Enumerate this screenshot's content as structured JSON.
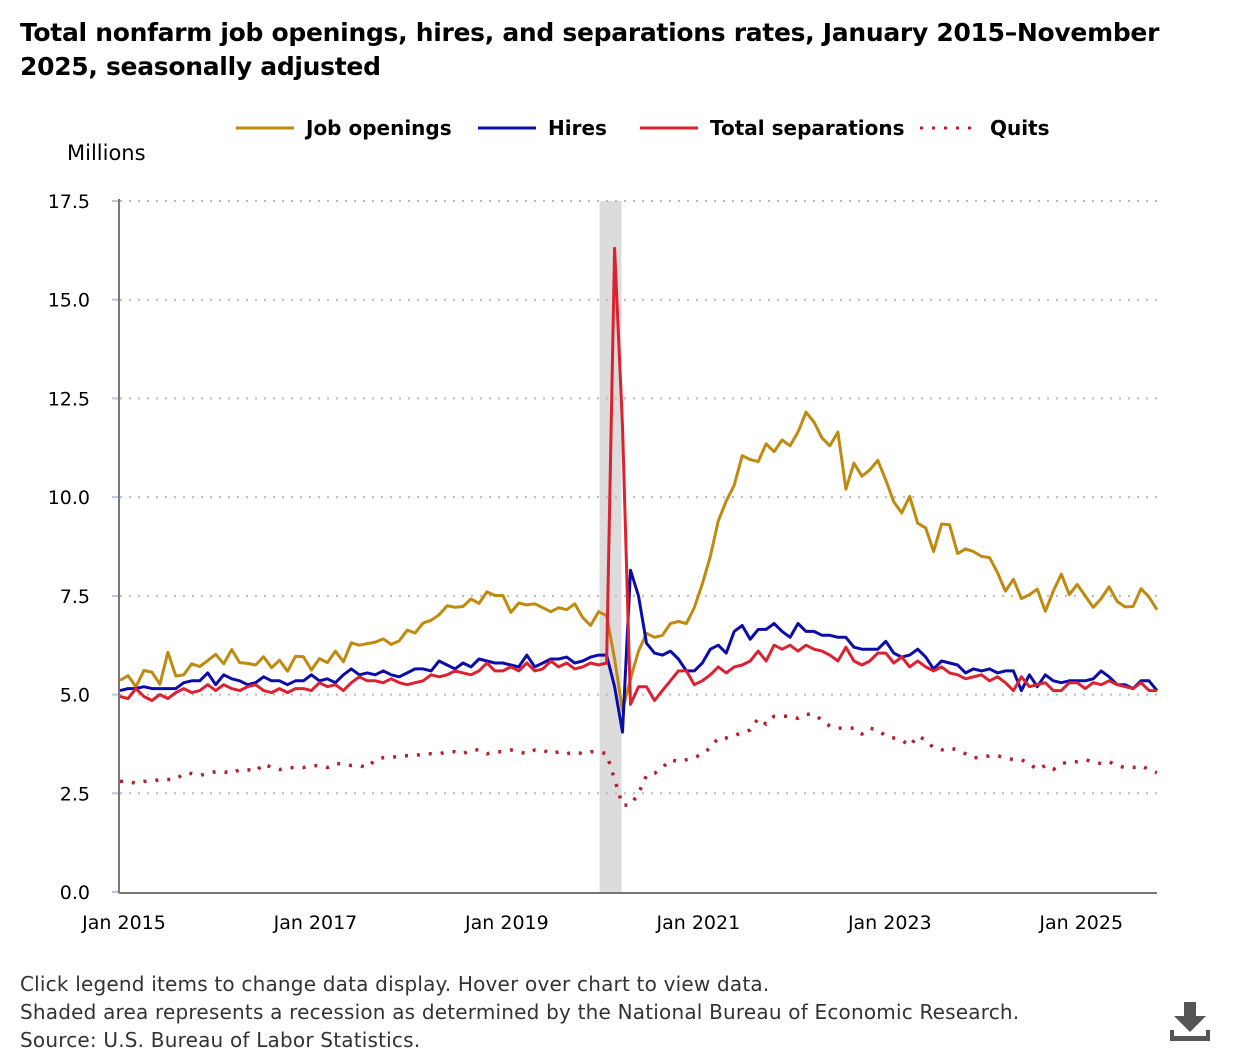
{
  "chart_data": {
    "type": "line",
    "title": "Total nonfarm job openings, hires, and separations rates, January 2015–November 2025, seasonally adjusted",
    "ylabel": "Millions",
    "xlabel": "",
    "ylim": [
      0,
      17.5
    ],
    "yticks": [
      "0.0",
      "2.5",
      "5.0",
      "7.5",
      "10.0",
      "12.5",
      "15.0",
      "17.5"
    ],
    "ytick_values": [
      0,
      2.5,
      5,
      7.5,
      10,
      12.5,
      15,
      17.5
    ],
    "xticks": [
      "Jan 2015",
      "Jan 2017",
      "Jan 2019",
      "Jan 2021",
      "Jan 2023",
      "Jan 2025"
    ],
    "x_start": "2015-01",
    "x_end": "2025-11",
    "grid": "horizontal dotted",
    "legend_placement": "top",
    "recession": {
      "start": "2020-02",
      "end": "2020-04",
      "color": "#dcdcdc"
    },
    "series": [
      {
        "name": "Job openings",
        "color": "#c08a10",
        "style": "solid",
        "values": [
          5.36,
          5.48,
          5.2,
          5.61,
          5.57,
          5.26,
          6.07,
          5.47,
          5.5,
          5.78,
          5.71,
          5.86,
          6.02,
          5.78,
          6.14,
          5.81,
          5.79,
          5.75,
          5.96,
          5.68,
          5.87,
          5.59,
          5.97,
          5.96,
          5.62,
          5.91,
          5.81,
          6.1,
          5.83,
          6.31,
          6.25,
          6.29,
          6.33,
          6.41,
          6.27,
          6.36,
          6.63,
          6.56,
          6.81,
          6.88,
          7.02,
          7.25,
          7.21,
          7.23,
          7.42,
          7.31,
          7.6,
          7.51,
          7.51,
          7.08,
          7.32,
          7.27,
          7.3,
          7.2,
          7.1,
          7.2,
          7.15,
          7.3,
          6.95,
          6.75,
          7.1,
          7.0,
          5.9,
          4.6,
          5.4,
          6.1,
          6.55,
          6.45,
          6.5,
          6.8,
          6.85,
          6.8,
          7.2,
          7.8,
          8.5,
          9.4,
          9.9,
          10.3,
          11.05,
          10.95,
          10.9,
          11.35,
          11.15,
          11.45,
          11.3,
          11.65,
          12.15,
          11.9,
          11.5,
          11.3,
          11.65,
          10.2,
          10.86,
          10.53,
          10.69,
          10.93,
          10.43,
          9.88,
          9.6,
          10.02,
          9.34,
          9.22,
          8.62,
          9.32,
          9.3,
          8.57,
          8.69,
          8.62,
          8.5,
          8.47,
          8.09,
          7.62,
          7.92,
          7.43,
          7.53,
          7.67,
          7.11,
          7.62,
          8.05,
          7.53,
          7.79,
          7.5,
          7.21,
          7.43,
          7.73,
          7.36,
          7.22,
          7.23,
          7.68,
          7.47,
          7.15
        ]
      },
      {
        "name": "Hires",
        "color": "#0c0ca8",
        "style": "solid",
        "values": [
          5.1,
          5.15,
          5.15,
          5.2,
          5.15,
          5.15,
          5.15,
          5.15,
          5.3,
          5.35,
          5.35,
          5.55,
          5.25,
          5.5,
          5.4,
          5.35,
          5.25,
          5.3,
          5.45,
          5.35,
          5.35,
          5.25,
          5.35,
          5.35,
          5.5,
          5.35,
          5.4,
          5.3,
          5.5,
          5.65,
          5.5,
          5.55,
          5.5,
          5.6,
          5.5,
          5.45,
          5.55,
          5.65,
          5.65,
          5.6,
          5.85,
          5.75,
          5.65,
          5.8,
          5.7,
          5.9,
          5.85,
          5.8,
          5.8,
          5.75,
          5.7,
          6.0,
          5.7,
          5.8,
          5.9,
          5.9,
          5.95,
          5.8,
          5.85,
          5.95,
          6.0,
          6.0,
          5.2,
          4.05,
          8.15,
          7.5,
          6.3,
          6.05,
          6.0,
          6.1,
          5.9,
          5.6,
          5.6,
          5.8,
          6.15,
          6.25,
          6.05,
          6.6,
          6.75,
          6.4,
          6.65,
          6.65,
          6.8,
          6.6,
          6.45,
          6.8,
          6.6,
          6.6,
          6.5,
          6.5,
          6.45,
          6.45,
          6.2,
          6.15,
          6.15,
          6.15,
          6.35,
          6.05,
          5.95,
          6.0,
          6.15,
          5.95,
          5.65,
          5.85,
          5.8,
          5.75,
          5.55,
          5.65,
          5.6,
          5.65,
          5.55,
          5.6,
          5.6,
          5.1,
          5.5,
          5.2,
          5.5,
          5.35,
          5.3,
          5.35,
          5.35,
          5.35,
          5.4,
          5.6,
          5.45,
          5.25,
          5.25,
          5.15,
          5.35,
          5.35,
          5.1
        ]
      },
      {
        "name": "Total separations",
        "color": "#dc2230",
        "style": "solid",
        "values": [
          4.95,
          4.9,
          5.15,
          4.95,
          4.85,
          5.0,
          4.9,
          5.05,
          5.15,
          5.05,
          5.1,
          5.25,
          5.1,
          5.25,
          5.15,
          5.1,
          5.2,
          5.25,
          5.1,
          5.05,
          5.15,
          5.05,
          5.15,
          5.15,
          5.1,
          5.3,
          5.2,
          5.25,
          5.1,
          5.3,
          5.45,
          5.35,
          5.35,
          5.3,
          5.4,
          5.3,
          5.25,
          5.3,
          5.35,
          5.5,
          5.45,
          5.5,
          5.6,
          5.55,
          5.5,
          5.6,
          5.8,
          5.6,
          5.6,
          5.7,
          5.6,
          5.8,
          5.6,
          5.65,
          5.85,
          5.7,
          5.8,
          5.65,
          5.7,
          5.8,
          5.75,
          5.8,
          16.3,
          11.8,
          4.75,
          5.2,
          5.2,
          4.85,
          5.1,
          5.35,
          5.6,
          5.6,
          5.25,
          5.35,
          5.5,
          5.7,
          5.55,
          5.7,
          5.75,
          5.85,
          6.1,
          5.85,
          6.25,
          6.15,
          6.25,
          6.1,
          6.25,
          6.15,
          6.1,
          6.0,
          5.85,
          6.2,
          5.85,
          5.75,
          5.85,
          6.05,
          6.05,
          5.8,
          5.95,
          5.7,
          5.85,
          5.7,
          5.6,
          5.7,
          5.55,
          5.5,
          5.4,
          5.45,
          5.5,
          5.35,
          5.45,
          5.3,
          5.1,
          5.45,
          5.2,
          5.25,
          5.3,
          5.1,
          5.1,
          5.3,
          5.3,
          5.15,
          5.3,
          5.25,
          5.35,
          5.25,
          5.2,
          5.15,
          5.3,
          5.1,
          5.1
        ]
      },
      {
        "name": "Quits",
        "color": "#b5202e",
        "style": "dotted",
        "values": [
          2.8,
          2.8,
          2.75,
          2.8,
          2.8,
          2.85,
          2.85,
          2.85,
          3.0,
          3.0,
          2.95,
          3.0,
          3.05,
          3.05,
          3.0,
          3.1,
          3.1,
          3.05,
          3.25,
          3.15,
          3.1,
          3.15,
          3.15,
          3.15,
          3.2,
          3.2,
          3.15,
          3.25,
          3.25,
          3.2,
          3.2,
          3.15,
          3.35,
          3.4,
          3.4,
          3.45,
          3.45,
          3.45,
          3.5,
          3.5,
          3.5,
          3.55,
          3.55,
          3.5,
          3.6,
          3.6,
          3.5,
          3.55,
          3.55,
          3.6,
          3.55,
          3.5,
          3.6,
          3.6,
          3.5,
          3.55,
          3.5,
          3.55,
          3.5,
          3.55,
          3.55,
          3.5,
          2.85,
          2.2,
          2.2,
          2.5,
          2.95,
          3.0,
          3.15,
          3.35,
          3.3,
          3.35,
          3.4,
          3.5,
          3.65,
          3.9,
          3.9,
          3.95,
          4.05,
          4.1,
          4.4,
          4.25,
          4.45,
          4.45,
          4.45,
          4.4,
          4.5,
          4.5,
          4.35,
          4.2,
          4.15,
          4.15,
          4.15,
          4.0,
          4.15,
          4.1,
          3.95,
          3.9,
          3.85,
          3.7,
          3.95,
          3.85,
          3.65,
          3.6,
          3.65,
          3.6,
          3.5,
          3.4,
          3.4,
          3.45,
          3.45,
          3.4,
          3.35,
          3.35,
          3.25,
          3.1,
          3.2,
          3.1,
          3.25,
          3.3,
          3.3,
          3.35,
          3.3,
          3.25,
          3.3,
          3.2,
          3.15,
          3.15,
          3.2,
          3.1,
          3.02
        ]
      }
    ]
  },
  "footer": {
    "line1": "Click legend items to change data display. Hover over chart to view data.",
    "line2": "Shaded area represents a recession as determined by the National Bureau of Economic Research.",
    "line3": "Source: U.S. Bureau of Labor Statistics."
  },
  "download_icon": "download-icon"
}
